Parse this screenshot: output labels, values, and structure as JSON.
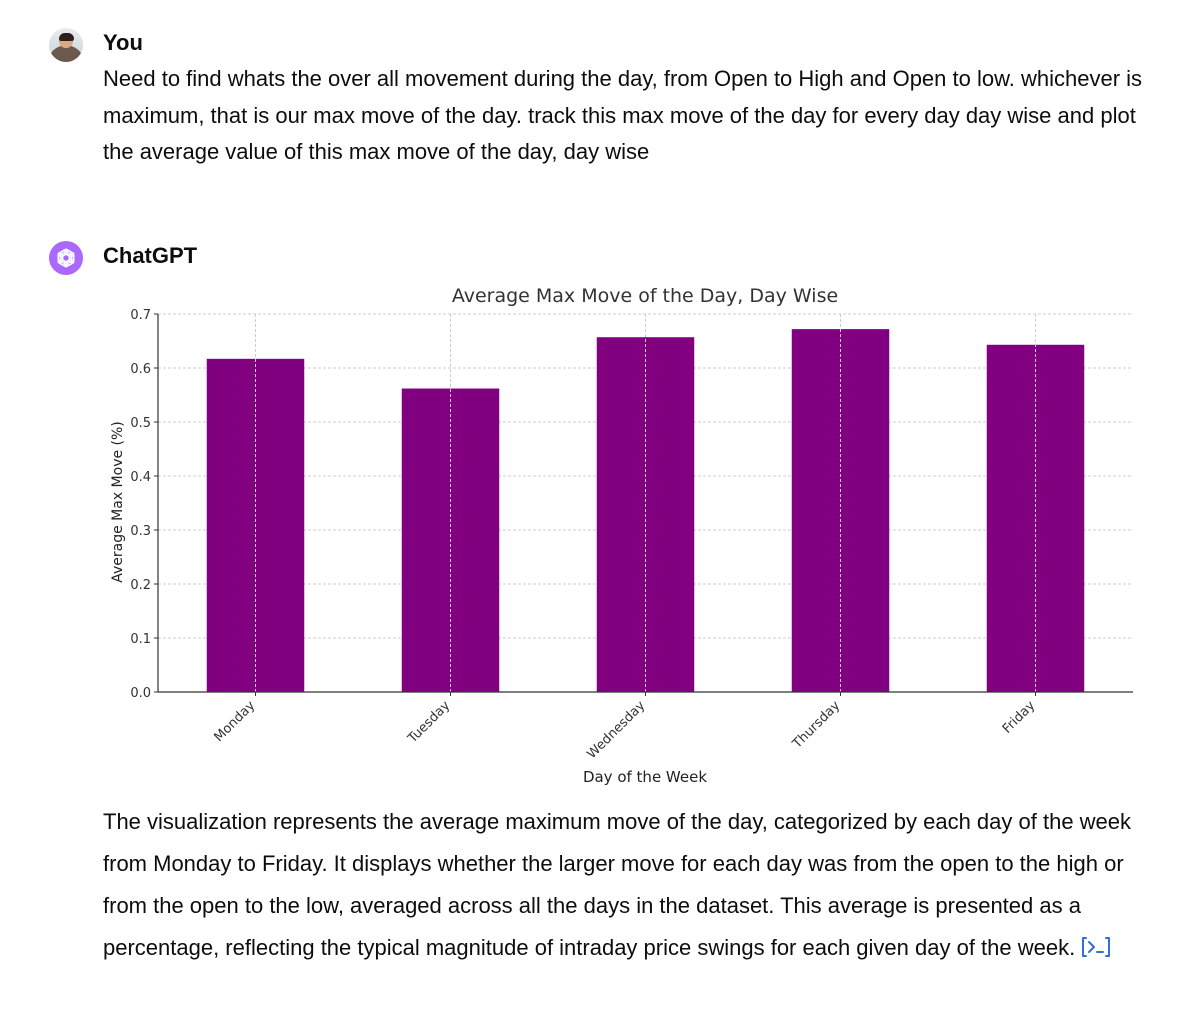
{
  "conversation": {
    "user": {
      "author": "You",
      "message": "Need to find whats the over all movement during the day, from Open to High and Open to low. whichever is maximum, that is our max move of the day. track this max move of the day for every day day wise and plot the average value of this max move of the day, day wise"
    },
    "assistant": {
      "author": "ChatGPT",
      "message": "The visualization represents the average maximum move of the day, categorized by each day of the week from Monday to Friday. It displays whether the larger move for each day was from the open to the high or from the open to the low, averaged across all the days in the dataset. This average is presented as a percentage, reflecting the typical magnitude of intraday price swings for each given day of the week.",
      "code_link_icon": "code-interpreter-icon"
    }
  },
  "chart_data": {
    "type": "bar",
    "title": "Average Max Move of the Day, Day Wise",
    "xlabel": "Day of the Week",
    "ylabel": "Average Max Move (%)",
    "categories": [
      "Monday",
      "Tuesday",
      "Wednesday",
      "Thursday",
      "Friday"
    ],
    "values": [
      0.617,
      0.562,
      0.657,
      0.672,
      0.643
    ],
    "ylim": [
      0,
      0.7
    ],
    "yticks": [
      "0.0",
      "0.1",
      "0.2",
      "0.3",
      "0.4",
      "0.5",
      "0.6",
      "0.7"
    ],
    "bar_color": "#800080",
    "grid": true
  },
  "colors": {
    "assistant_avatar": "#ab68ff",
    "code_link": "#2f6fd6"
  }
}
